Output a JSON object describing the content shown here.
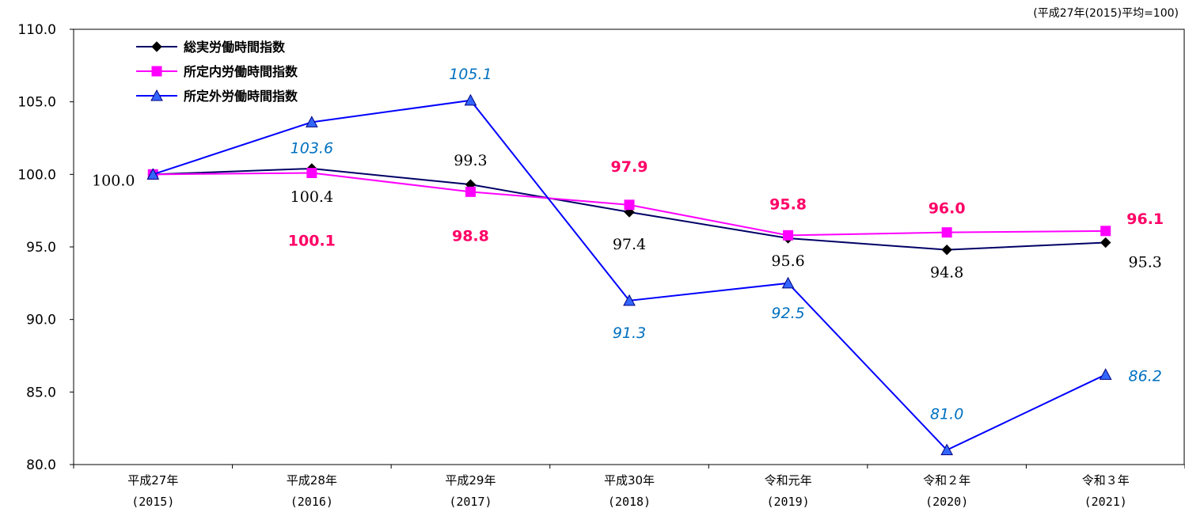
{
  "chart_data": {
    "type": "line",
    "unit_note": "(平成27年(2015)平均=100)",
    "categories": [
      [
        "平成27年",
        "(2015)"
      ],
      [
        "平成28年",
        "(2016)"
      ],
      [
        "平成29年",
        "(2017)"
      ],
      [
        "平成30年",
        "(2018)"
      ],
      [
        "令和元年",
        "(2019)"
      ],
      [
        "令和２年",
        "(2020)"
      ],
      [
        "令和３年",
        "(2021)"
      ]
    ],
    "ylim": [
      80,
      110
    ],
    "yticks": [
      "80.0",
      "85.0",
      "90.0",
      "95.0",
      "100.0",
      "105.0",
      "110.0"
    ],
    "legend_position": "top-left",
    "grid": false,
    "series": [
      {
        "name": "総実労働時間指数",
        "values": [
          100.0,
          100.4,
          99.3,
          97.4,
          95.6,
          94.8,
          95.3
        ],
        "labels": [
          "100.0",
          "100.4",
          "99.3",
          "97.4",
          "95.6",
          "94.8",
          "95.3"
        ],
        "line_color": "#000066",
        "marker": "diamond",
        "marker_color": "#000000",
        "label_color": "#000000"
      },
      {
        "name": "所定内労働時間指数",
        "values": [
          100.0,
          100.1,
          98.8,
          97.9,
          95.8,
          96.0,
          96.1
        ],
        "labels": [
          "",
          "100.1",
          "98.8",
          "97.9",
          "95.8",
          "96.0",
          "96.1"
        ],
        "line_color": "#FF00FF",
        "marker": "square",
        "marker_color": "#FF00FF",
        "label_color": "#FF0066"
      },
      {
        "name": "所定外労働時間指数",
        "values": [
          100.0,
          103.6,
          105.1,
          91.3,
          92.5,
          81.0,
          86.2
        ],
        "labels": [
          "",
          "103.6",
          "105.1",
          "91.3",
          "92.5",
          "81.0",
          "86.2"
        ],
        "line_color": "#0000FF",
        "marker": "triangle",
        "marker_color": "#3366FF",
        "label_color": "#0070C0"
      }
    ]
  }
}
